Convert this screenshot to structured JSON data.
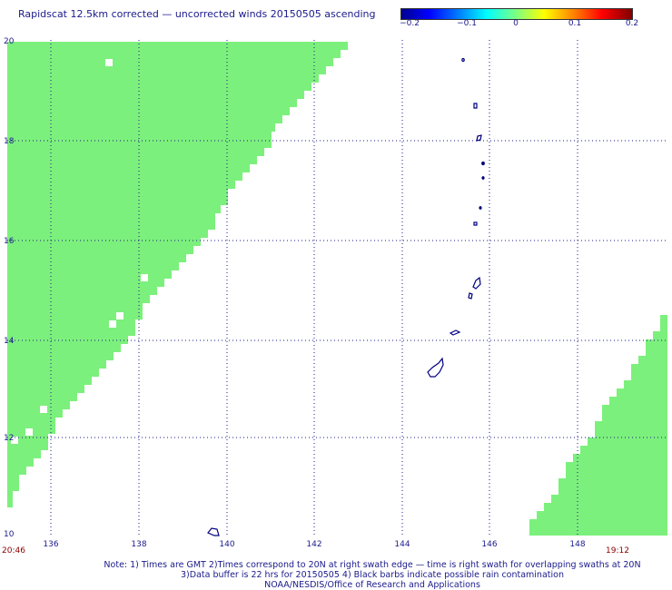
{
  "header": {
    "title": "Rapidscat 12.5km corrected — uncorrected winds 20150505 ascending"
  },
  "colorbar": {
    "ticks": [
      "−0.2",
      "−0.1",
      "0",
      "0.1",
      "0.2"
    ],
    "tick_values": [
      -0.2,
      -0.1,
      0,
      0.1,
      0.2
    ]
  },
  "map": {
    "lon_range": [
      135,
      149.8
    ],
    "lat_range": [
      10,
      20
    ],
    "lon_labels": [
      "136",
      "138",
      "140",
      "142",
      "144",
      "146",
      "148"
    ],
    "lon_values": [
      136,
      138,
      140,
      142,
      144,
      146,
      148
    ],
    "lat_labels": [
      "20",
      "18",
      "16",
      "14",
      "12",
      "10"
    ],
    "lat_values": [
      20,
      18,
      16,
      14,
      12,
      10
    ],
    "time_left": "20:46",
    "time_right": "19:12",
    "grid": true,
    "swath_color": "#7cf07c",
    "land_outline_color": "#00007f"
  },
  "notes": {
    "line1": "Note: 1) Times are GMT 2)Times correspond to 20N at right swath edge — time is right swath for overlapping swaths at 20N",
    "line2": "3)Data buffer is 22 hrs for 20150505 4) Black barbs indicate possible rain contamination",
    "line3": "NOAA/NESDIS/Office of Research and Applications"
  }
}
